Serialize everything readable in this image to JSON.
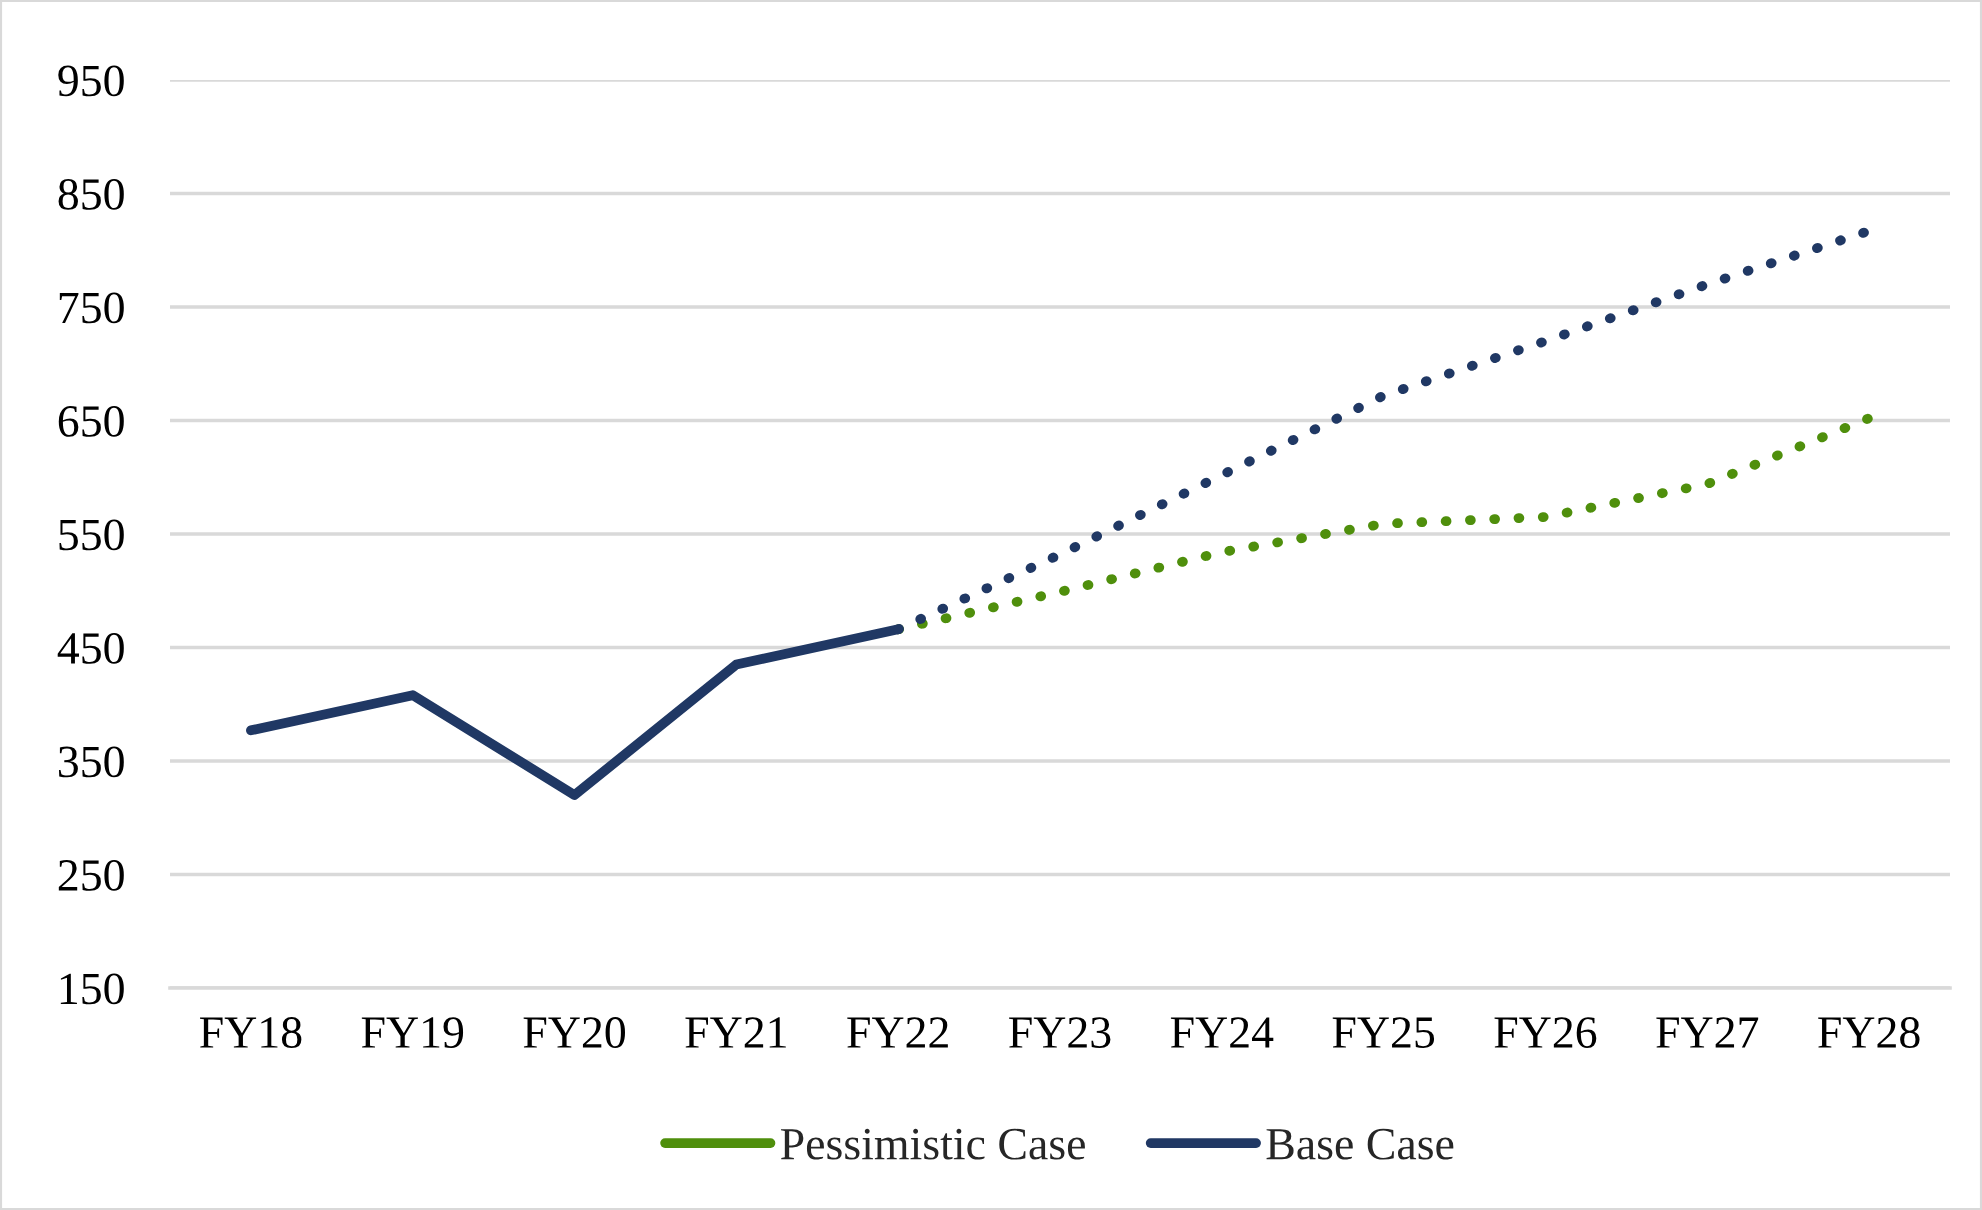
{
  "chart_data": {
    "type": "line",
    "categories": [
      "FY18",
      "FY19",
      "FY20",
      "FY21",
      "FY22",
      "FY23",
      "FY24",
      "FY25",
      "FY26",
      "FY27",
      "FY28"
    ],
    "ylim": [
      150,
      950
    ],
    "yticks": [
      150,
      250,
      350,
      450,
      550,
      650,
      750,
      850,
      950
    ],
    "grid": "y",
    "legend": "bottom",
    "series": [
      {
        "name": "Pessimistic Case",
        "color": "#4f8f0c",
        "line_style": "dotted",
        "values": [
          null,
          null,
          null,
          null,
          466,
          499,
          534,
          559,
          565,
          594,
          652
        ]
      },
      {
        "name": "Base Case",
        "color": "#203864",
        "line_style": "solid",
        "values": [
          377,
          408,
          320,
          435,
          466,
          null,
          null,
          null,
          null,
          null,
          null
        ]
      },
      {
        "color": "#203864",
        "line_style": "dotted",
        "values": [
          null,
          null,
          null,
          null,
          466,
          532,
          602,
          672,
          720,
          770,
          817
        ]
      }
    ]
  }
}
